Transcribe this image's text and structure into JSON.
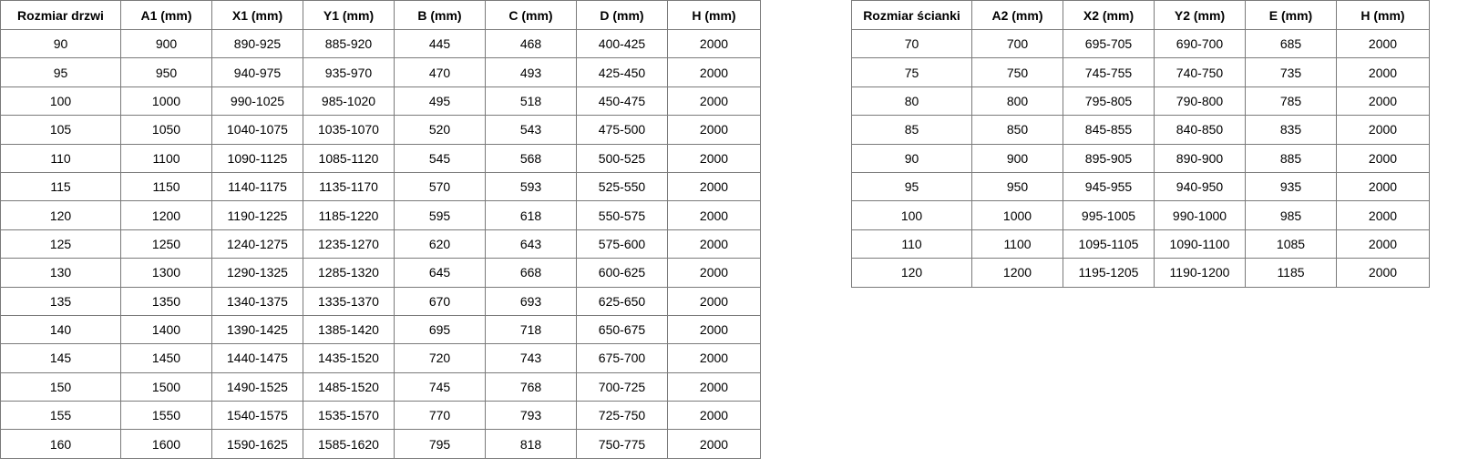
{
  "doors_table": {
    "headers": [
      "Rozmiar drzwi",
      "A1 (mm)",
      "X1 (mm)",
      "Y1 (mm)",
      "B (mm)",
      "C (mm)",
      "D (mm)",
      "H (mm)"
    ],
    "rows": [
      [
        "90",
        "900",
        "890-925",
        "885-920",
        "445",
        "468",
        "400-425",
        "2000"
      ],
      [
        "95",
        "950",
        "940-975",
        "935-970",
        "470",
        "493",
        "425-450",
        "2000"
      ],
      [
        "100",
        "1000",
        "990-1025",
        "985-1020",
        "495",
        "518",
        "450-475",
        "2000"
      ],
      [
        "105",
        "1050",
        "1040-1075",
        "1035-1070",
        "520",
        "543",
        "475-500",
        "2000"
      ],
      [
        "110",
        "1100",
        "1090-1125",
        "1085-1120",
        "545",
        "568",
        "500-525",
        "2000"
      ],
      [
        "115",
        "1150",
        "1140-1175",
        "1135-1170",
        "570",
        "593",
        "525-550",
        "2000"
      ],
      [
        "120",
        "1200",
        "1190-1225",
        "1185-1220",
        "595",
        "618",
        "550-575",
        "2000"
      ],
      [
        "125",
        "1250",
        "1240-1275",
        "1235-1270",
        "620",
        "643",
        "575-600",
        "2000"
      ],
      [
        "130",
        "1300",
        "1290-1325",
        "1285-1320",
        "645",
        "668",
        "600-625",
        "2000"
      ],
      [
        "135",
        "1350",
        "1340-1375",
        "1335-1370",
        "670",
        "693",
        "625-650",
        "2000"
      ],
      [
        "140",
        "1400",
        "1390-1425",
        "1385-1420",
        "695",
        "718",
        "650-675",
        "2000"
      ],
      [
        "145",
        "1450",
        "1440-1475",
        "1435-1520",
        "720",
        "743",
        "675-700",
        "2000"
      ],
      [
        "150",
        "1500",
        "1490-1525",
        "1485-1520",
        "745",
        "768",
        "700-725",
        "2000"
      ],
      [
        "155",
        "1550",
        "1540-1575",
        "1535-1570",
        "770",
        "793",
        "725-750",
        "2000"
      ],
      [
        "160",
        "1600",
        "1590-1625",
        "1585-1620",
        "795",
        "818",
        "750-775",
        "2000"
      ]
    ]
  },
  "wall_table": {
    "headers": [
      "Rozmiar ścianki",
      "A2 (mm)",
      "X2 (mm)",
      "Y2 (mm)",
      "E (mm)",
      "H (mm)"
    ],
    "rows": [
      [
        "70",
        "700",
        "695-705",
        "690-700",
        "685",
        "2000"
      ],
      [
        "75",
        "750",
        "745-755",
        "740-750",
        "735",
        "2000"
      ],
      [
        "80",
        "800",
        "795-805",
        "790-800",
        "785",
        "2000"
      ],
      [
        "85",
        "850",
        "845-855",
        "840-850",
        "835",
        "2000"
      ],
      [
        "90",
        "900",
        "895-905",
        "890-900",
        "885",
        "2000"
      ],
      [
        "95",
        "950",
        "945-955",
        "940-950",
        "935",
        "2000"
      ],
      [
        "100",
        "1000",
        "995-1005",
        "990-1000",
        "985",
        "2000"
      ],
      [
        "110",
        "1100",
        "1095-1105",
        "1090-1100",
        "1085",
        "2000"
      ],
      [
        "120",
        "1200",
        "1195-1205",
        "1190-1200",
        "1185",
        "2000"
      ]
    ]
  }
}
